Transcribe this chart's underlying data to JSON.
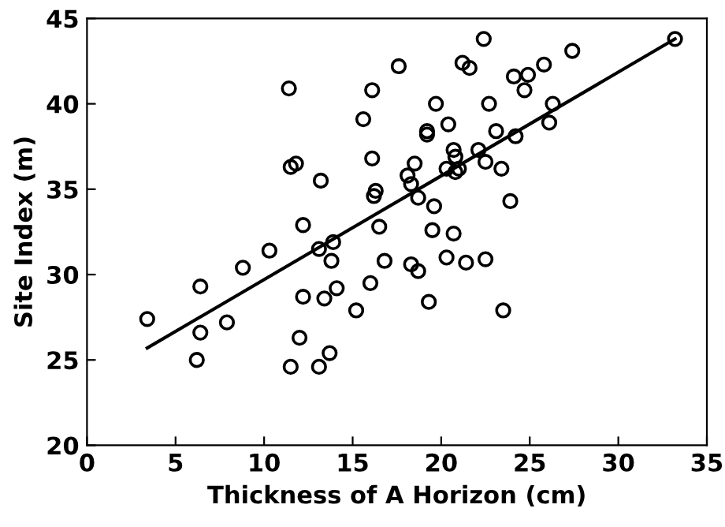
{
  "chart_data": {
    "type": "scatter",
    "xlabel": "Thickness of A Horizon (cm)",
    "ylabel": "Site Index (m)",
    "xlim": [
      0,
      35
    ],
    "ylim": [
      20,
      45
    ],
    "xticks": [
      0,
      5,
      10,
      15,
      20,
      25,
      30,
      35
    ],
    "yticks": [
      20,
      25,
      30,
      35,
      40,
      45
    ],
    "grid": false,
    "series": [
      {
        "marker": "circle",
        "color": "#000000",
        "x": [
          3.4,
          6.2,
          6.4,
          6.4,
          7.9,
          8.8,
          10.3,
          11.4,
          11.5,
          11.8,
          11.5,
          12.0,
          12.2,
          12.2,
          13.1,
          13.1,
          13.2,
          13.4,
          13.7,
          13.8,
          13.9,
          14.1,
          15.2,
          15.6,
          16.0,
          16.1,
          16.1,
          16.2,
          16.3,
          16.5,
          16.8,
          17.6,
          18.1,
          18.3,
          18.3,
          18.5,
          18.7,
          18.7,
          19.2,
          19.2,
          19.3,
          19.5,
          19.6,
          19.7,
          20.3,
          20.3,
          20.4,
          20.7,
          20.7,
          20.8,
          20.8,
          21.0,
          21.2,
          21.4,
          21.6,
          22.1,
          22.4,
          22.5,
          22.5,
          22.7,
          23.1,
          23.4,
          23.5,
          23.9,
          24.1,
          24.2,
          24.7,
          24.9,
          25.8,
          26.1,
          26.3,
          27.4,
          33.2
        ],
        "values": [
          27.4,
          25.0,
          26.6,
          29.3,
          27.2,
          30.4,
          31.4,
          40.9,
          24.6,
          36.5,
          36.3,
          26.3,
          28.7,
          32.9,
          24.6,
          31.5,
          35.5,
          28.6,
          25.4,
          30.8,
          31.9,
          29.2,
          27.9,
          39.1,
          29.5,
          40.8,
          36.8,
          34.6,
          34.9,
          32.8,
          30.8,
          42.2,
          35.8,
          35.3,
          30.6,
          36.5,
          34.5,
          30.2,
          38.4,
          38.2,
          28.4,
          32.6,
          34.0,
          40.0,
          36.2,
          31.0,
          38.8,
          37.3,
          32.4,
          36.9,
          36.0,
          36.2,
          42.4,
          30.7,
          42.1,
          37.3,
          43.8,
          36.6,
          30.9,
          40.0,
          38.4,
          36.2,
          27.9,
          34.3,
          41.6,
          38.1,
          40.8,
          41.7,
          42.3,
          38.9,
          40.0,
          43.1,
          43.8
        ]
      },
      {
        "type": "line",
        "marker": "none",
        "color": "#000000",
        "x": [
          3.4,
          33.2
        ],
        "values": [
          25.7,
          43.8
        ]
      }
    ]
  }
}
